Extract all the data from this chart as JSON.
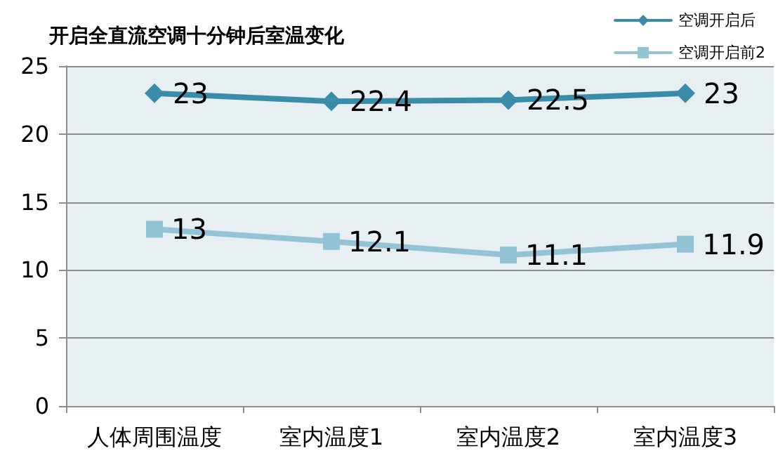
{
  "chart_data": {
    "type": "line",
    "title": "开启全直流空调十分钟后室温变化",
    "categories": [
      "人体周围温度",
      "室内温度1",
      "室内温度2",
      "室内温度3"
    ],
    "series": [
      {
        "name": "空调开启后",
        "color": "#3a8da8",
        "marker": "diamond",
        "values": [
          23,
          22.4,
          22.5,
          23
        ]
      },
      {
        "name": "空调开启前2",
        "color": "#93c4d6",
        "marker": "square",
        "values": [
          13,
          12.1,
          11.1,
          11.9
        ]
      }
    ],
    "ylim": [
      0,
      25
    ],
    "yticks": [
      0,
      5,
      10,
      15,
      20,
      25
    ],
    "grid": "y",
    "legend": "top right",
    "data_labels": true,
    "line_style": "solid"
  }
}
